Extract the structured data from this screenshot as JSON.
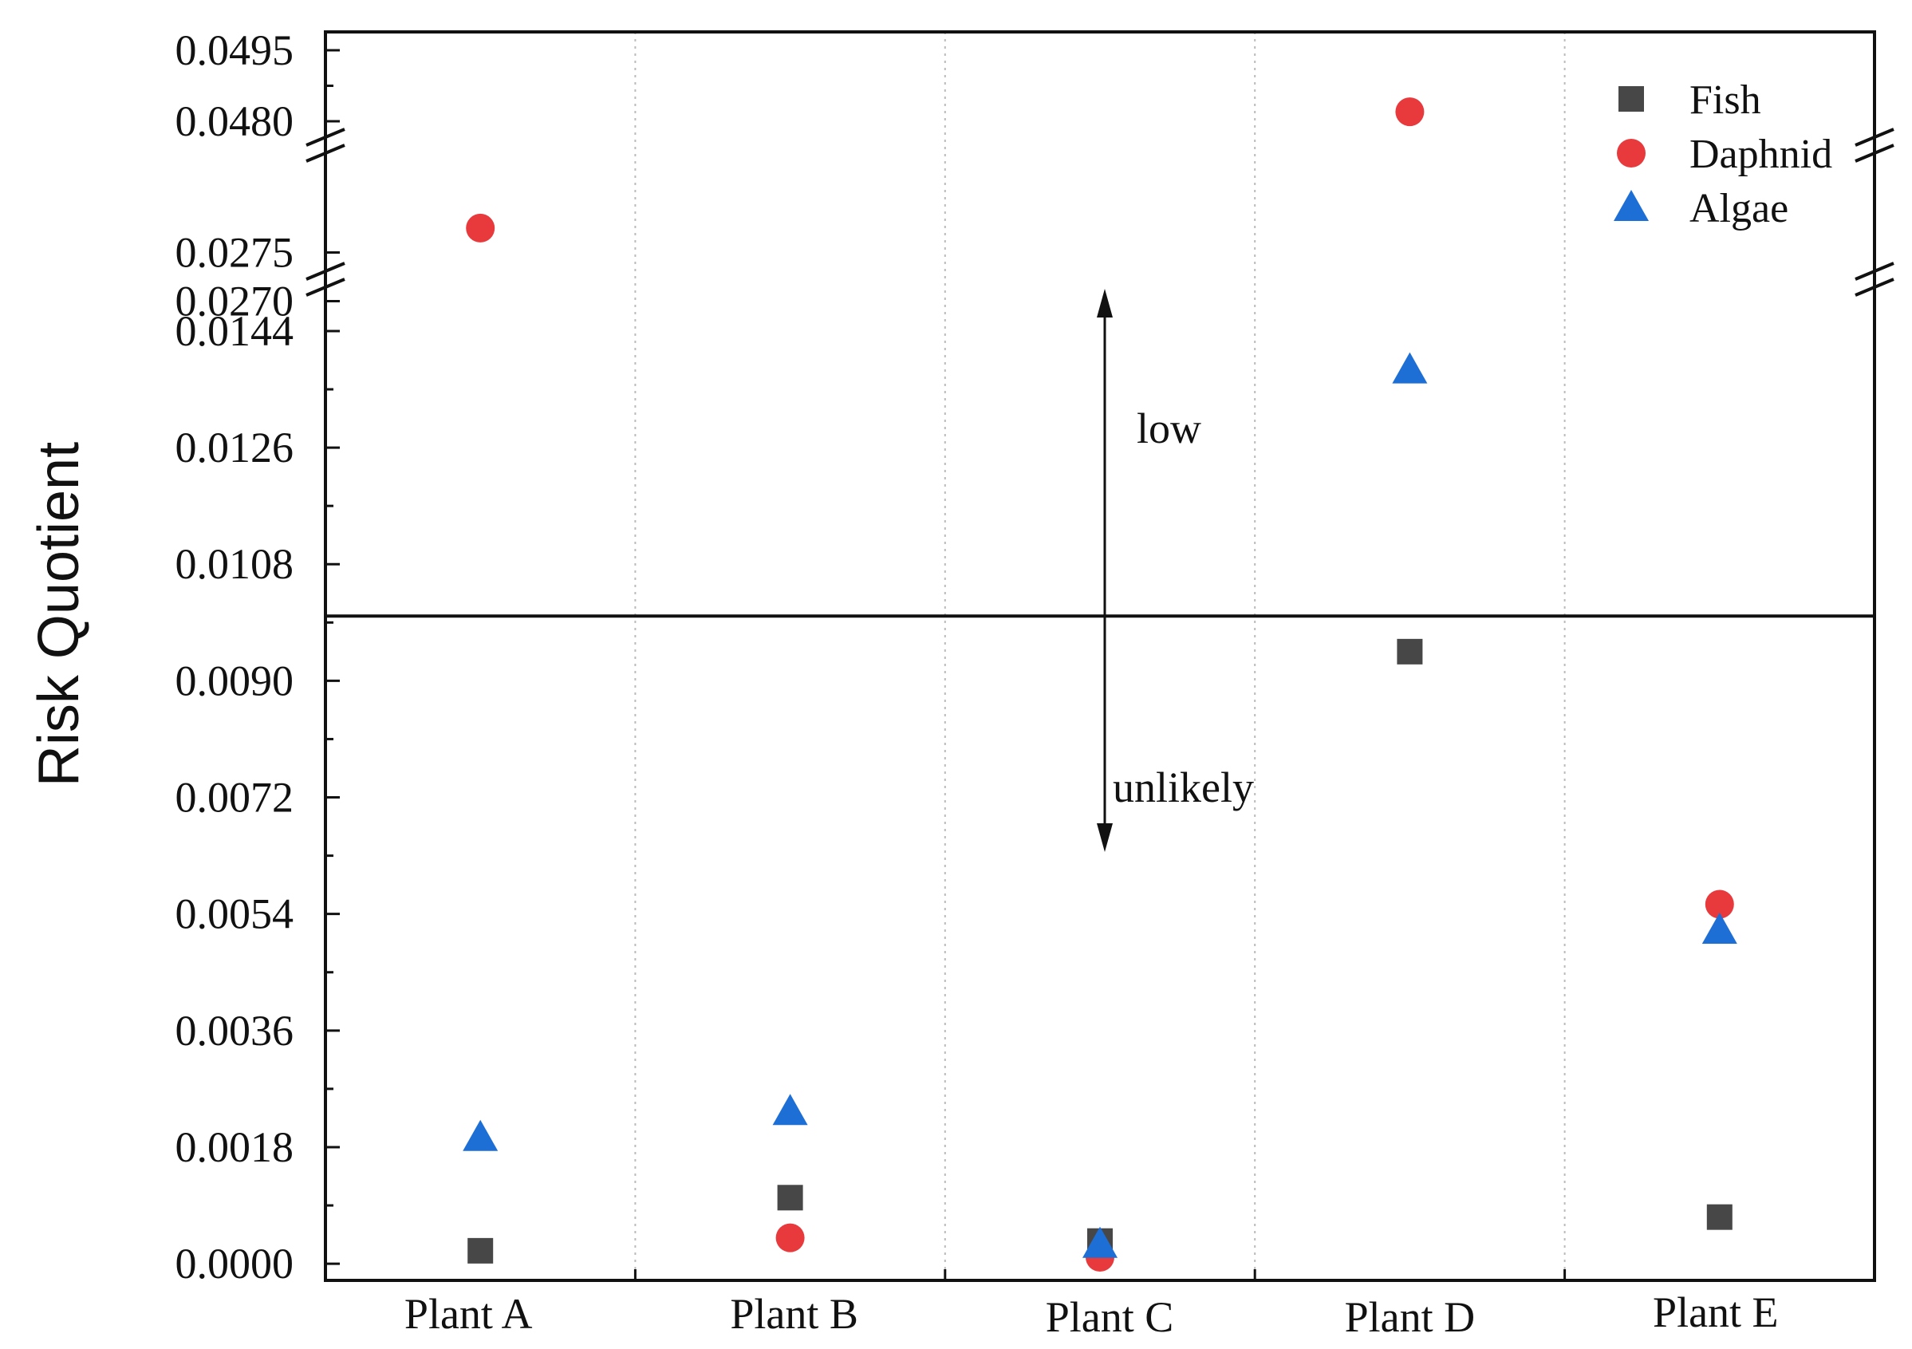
{
  "chart_data": {
    "type": "scatter",
    "title": "",
    "xlabel": "",
    "ylabel": "Risk Quotient",
    "categories": [
      "Plant A",
      "Plant B",
      "Plant C",
      "Plant D",
      "Plant E"
    ],
    "series": [
      {
        "name": "Fish",
        "marker": "square",
        "color": "#474747",
        "values": [
          0.0002,
          0.00102,
          0.00035,
          0.00945,
          0.00072
        ]
      },
      {
        "name": "Daphnid",
        "marker": "circle",
        "color": "#e8393c",
        "values": [
          0.02775,
          0.0004,
          0.0001,
          0.0482,
          0.00555
        ]
      },
      {
        "name": "Algae",
        "marker": "triangle",
        "color": "#1d6fd6",
        "values": [
          0.00195,
          0.00235,
          0.0003,
          0.0138,
          0.00515
        ]
      }
    ],
    "y_axis_segments": [
      {
        "range": [
          -0.001,
          0.0152
        ],
        "ticks": [
          "0.0000",
          "0.0018",
          "0.0036",
          "0.0054",
          "0.0072",
          "0.0090",
          "0.0108",
          "0.0126",
          "0.0144"
        ],
        "tick_values": [
          0.0,
          0.0018,
          0.0036,
          0.0054,
          0.0072,
          0.009,
          0.0108,
          0.0126,
          0.0144
        ]
      },
      {
        "range": [
          0.0267,
          0.0285
        ],
        "ticks": [
          "0.0270",
          "0.0275"
        ],
        "tick_values": [
          0.027,
          0.0275
        ]
      },
      {
        "range": [
          0.0471,
          0.0499
        ],
        "ticks": [
          "0.0480",
          "0.0495"
        ],
        "tick_values": [
          0.048,
          0.0495
        ]
      }
    ],
    "threshold_line": 0.01,
    "annotations": [
      {
        "text": "low",
        "region": "above threshold"
      },
      {
        "text": "unlikely",
        "region": "below threshold"
      }
    ],
    "legend_position": "top-right",
    "grid": "vertical dotted lines between categories"
  }
}
